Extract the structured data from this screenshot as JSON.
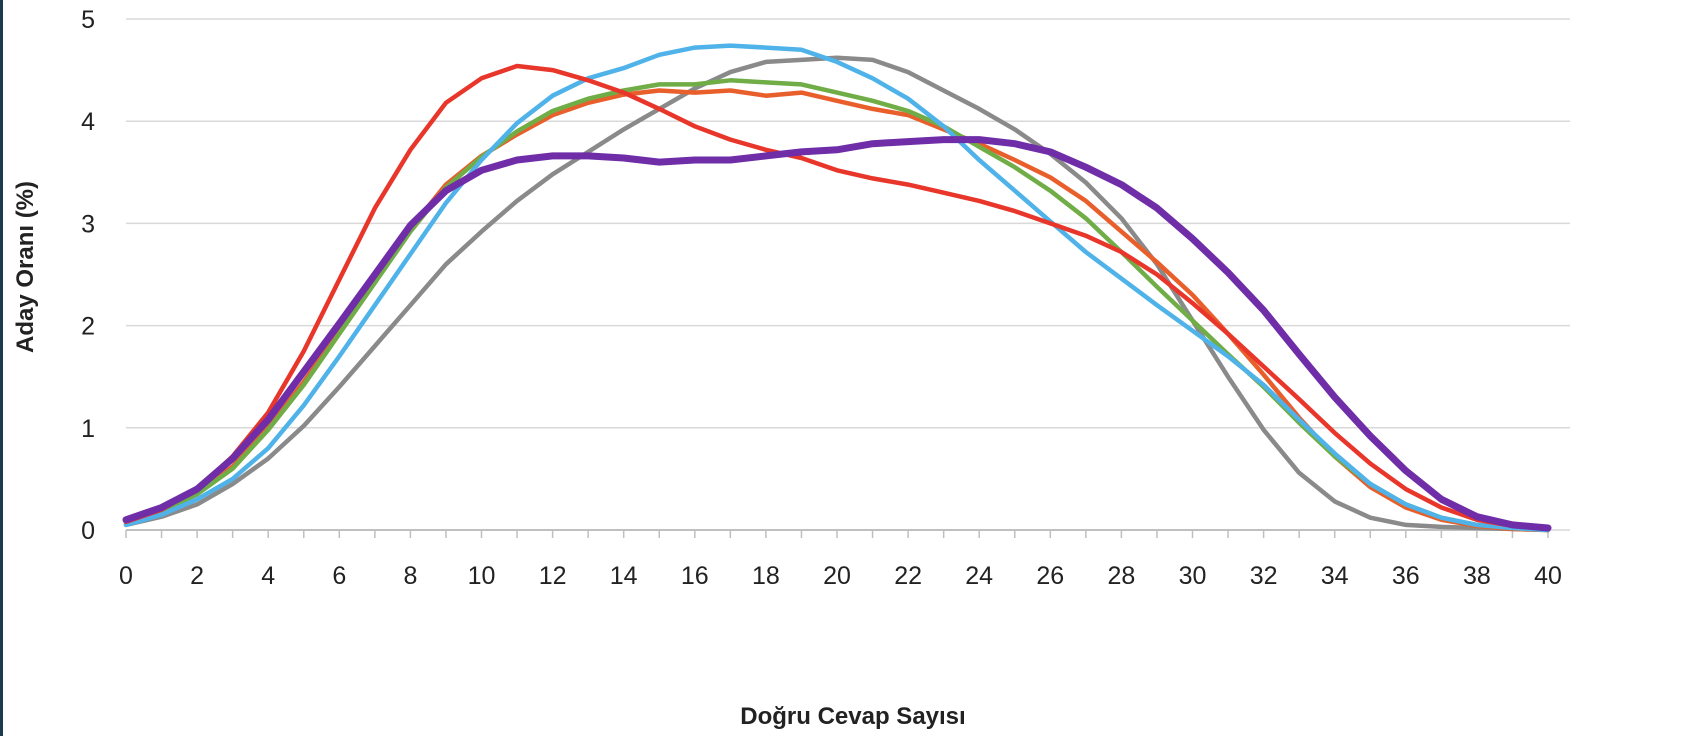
{
  "chart_data": {
    "type": "line",
    "title": "",
    "xlabel": "Doğru Cevap Sayısı",
    "ylabel": "Aday Oranı (%)",
    "xlim": [
      0,
      40
    ],
    "ylim": [
      0,
      5
    ],
    "xticks": [
      "0",
      "2",
      "4",
      "6",
      "8",
      "10",
      "12",
      "14",
      "16",
      "18",
      "20",
      "22",
      "24",
      "26",
      "28",
      "30",
      "32",
      "34",
      "36",
      "38",
      "40"
    ],
    "yticks": [
      "0",
      "1",
      "2",
      "3",
      "4",
      "5"
    ],
    "grid": "horizontal",
    "legend": "none",
    "x": [
      0,
      1,
      2,
      3,
      4,
      5,
      6,
      7,
      8,
      9,
      10,
      11,
      12,
      13,
      14,
      15,
      16,
      17,
      18,
      19,
      20,
      21,
      22,
      23,
      24,
      25,
      26,
      27,
      28,
      29,
      30,
      31,
      32,
      33,
      34,
      35,
      36,
      37,
      38,
      39,
      40
    ],
    "series": [
      {
        "color": "#8a8a8a",
        "values": [
          0.05,
          0.13,
          0.25,
          0.45,
          0.7,
          1.02,
          1.4,
          1.8,
          2.2,
          2.6,
          2.92,
          3.22,
          3.48,
          3.7,
          3.92,
          4.12,
          4.32,
          4.48,
          4.58,
          4.6,
          4.62,
          4.6,
          4.48,
          4.3,
          4.12,
          3.92,
          3.68,
          3.4,
          3.05,
          2.6,
          2.05,
          1.5,
          0.98,
          0.56,
          0.28,
          0.12,
          0.05,
          0.03,
          0.02,
          0.01,
          0
        ]
      },
      {
        "color": "#e85f2c",
        "values": [
          0.07,
          0.19,
          0.36,
          0.62,
          1.0,
          1.45,
          1.95,
          2.45,
          2.95,
          3.38,
          3.66,
          3.87,
          4.06,
          4.18,
          4.26,
          4.3,
          4.28,
          4.3,
          4.25,
          4.28,
          4.2,
          4.12,
          4.06,
          3.92,
          3.78,
          3.62,
          3.45,
          3.22,
          2.92,
          2.62,
          2.3,
          1.92,
          1.52,
          1.1,
          0.72,
          0.42,
          0.22,
          0.1,
          0.04,
          0.01,
          0
        ]
      },
      {
        "color": "#70ad47",
        "values": [
          0.07,
          0.18,
          0.35,
          0.6,
          0.98,
          1.42,
          1.92,
          2.42,
          2.92,
          3.35,
          3.65,
          3.9,
          4.1,
          4.22,
          4.3,
          4.36,
          4.36,
          4.4,
          4.38,
          4.36,
          4.28,
          4.2,
          4.1,
          3.95,
          3.75,
          3.55,
          3.32,
          3.05,
          2.72,
          2.38,
          2.05,
          1.72,
          1.4,
          1.05,
          0.72,
          0.45,
          0.25,
          0.12,
          0.05,
          0.02,
          0
        ]
      },
      {
        "color": "#4fb3ea",
        "values": [
          0.05,
          0.15,
          0.3,
          0.5,
          0.8,
          1.22,
          1.7,
          2.2,
          2.7,
          3.2,
          3.62,
          3.98,
          4.25,
          4.42,
          4.52,
          4.65,
          4.72,
          4.74,
          4.72,
          4.7,
          4.58,
          4.42,
          4.22,
          3.95,
          3.62,
          3.32,
          3.02,
          2.72,
          2.46,
          2.2,
          1.95,
          1.7,
          1.42,
          1.08,
          0.75,
          0.45,
          0.25,
          0.12,
          0.05,
          0.02,
          0
        ]
      },
      {
        "color": "#e8362b",
        "values": [
          0.08,
          0.2,
          0.4,
          0.72,
          1.15,
          1.75,
          2.45,
          3.15,
          3.72,
          4.18,
          4.42,
          4.54,
          4.5,
          4.4,
          4.28,
          4.12,
          3.95,
          3.82,
          3.72,
          3.64,
          3.52,
          3.44,
          3.38,
          3.3,
          3.22,
          3.12,
          3.0,
          2.88,
          2.72,
          2.5,
          2.22,
          1.92,
          1.6,
          1.28,
          0.95,
          0.65,
          0.4,
          0.22,
          0.1,
          0.04,
          0.01
        ]
      },
      {
        "color": "#6f2da8",
        "values": [
          0.1,
          0.22,
          0.4,
          0.7,
          1.08,
          1.55,
          2.02,
          2.5,
          2.98,
          3.32,
          3.52,
          3.62,
          3.66,
          3.66,
          3.64,
          3.6,
          3.62,
          3.62,
          3.66,
          3.7,
          3.72,
          3.78,
          3.8,
          3.82,
          3.82,
          3.78,
          3.7,
          3.55,
          3.38,
          3.15,
          2.85,
          2.52,
          2.15,
          1.72,
          1.3,
          0.92,
          0.58,
          0.3,
          0.13,
          0.05,
          0.02
        ]
      }
    ]
  }
}
